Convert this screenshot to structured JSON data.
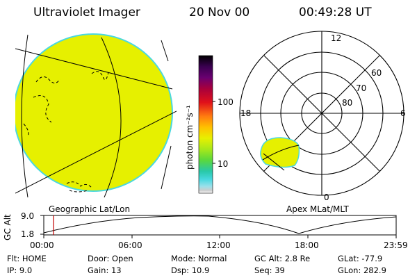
{
  "header": {
    "instrument": "Ultraviolet Imager",
    "date": "20 Nov 00",
    "time": "00:49:28 UT"
  },
  "left_panel": {
    "caption": "Geographic Lat/Lon"
  },
  "colorbar": {
    "unit_label": "photon cm⁻²s⁻¹",
    "tick_labels": [
      "100",
      "10"
    ],
    "colors": [
      "#000000",
      "#3a0050",
      "#6a0070",
      "#a8003c",
      "#e0101a",
      "#ff7a10",
      "#ffc000",
      "#e8f000",
      "#a8e81a",
      "#5ad83c",
      "#28c8a8",
      "#48d8e0",
      "#9ae0ea",
      "#cccccc",
      "#ffffff"
    ]
  },
  "polar_panel": {
    "caption": "Apex MLat/MLT",
    "mlt_labels": {
      "top": "12",
      "left": "18",
      "right": "6",
      "bottom": "0"
    },
    "lat_labels": [
      "60",
      "70",
      "80"
    ]
  },
  "altitude_plot": {
    "axis_label": "GC Alt",
    "y_ticks": [
      "9.0",
      "1.8"
    ],
    "x_ticks": [
      "00:00",
      "06:00",
      "12:00",
      "18:00",
      "23:59"
    ]
  },
  "status": {
    "row1": [
      {
        "label": "Flt:",
        "value": "HOME"
      },
      {
        "label": "Door:",
        "value": "Open"
      },
      {
        "label": "Mode:",
        "value": "Normal"
      },
      {
        "label": "GC Alt:",
        "value": "2.8 Re"
      },
      {
        "label": "GLat:",
        "value": "-77.9"
      }
    ],
    "row2": [
      {
        "label": "IP:",
        "value": "9.0"
      },
      {
        "label": "Gain:",
        "value": "13"
      },
      {
        "label": "Dsp:",
        "value": "10.9"
      },
      {
        "label": "Seq:",
        "value": "39"
      },
      {
        "label": "GLon:",
        "value": "282.9"
      }
    ]
  },
  "colors": {
    "image_fill": "#e6f000",
    "image_edge": "#4ad8e0",
    "marker": "#c00000"
  }
}
